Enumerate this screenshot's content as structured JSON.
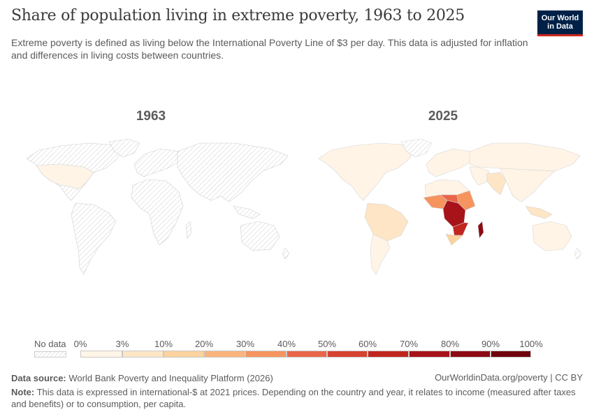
{
  "header": {
    "title": "Share of population living in extreme poverty, 1963 to 2025",
    "subtitle": "Extreme poverty is defined as living below the International Poverty Line of $3 per day. This data is adjusted for inflation and differences in living costs between countries.",
    "logo_line1": "Our World",
    "logo_line2": "in Data"
  },
  "maps": [
    {
      "year": "1963"
    },
    {
      "year": "2025"
    }
  ],
  "legend": {
    "no_data_label": "No data",
    "ticks": [
      "0%",
      "3%",
      "10%",
      "20%",
      "30%",
      "40%",
      "50%",
      "60%",
      "70%",
      "80%",
      "90%",
      "100%"
    ],
    "bins": [
      {
        "from": 0,
        "to": 3,
        "color": "#fff4e6"
      },
      {
        "from": 3,
        "to": 10,
        "color": "#fde5c6"
      },
      {
        "from": 10,
        "to": 20,
        "color": "#fcd29e"
      },
      {
        "from": 20,
        "to": 30,
        "color": "#fbb37c"
      },
      {
        "from": 30,
        "to": 40,
        "color": "#f5945f"
      },
      {
        "from": 40,
        "to": 50,
        "color": "#e9664a"
      },
      {
        "from": 50,
        "to": 60,
        "color": "#d7412f"
      },
      {
        "from": 60,
        "to": 70,
        "color": "#c0261e"
      },
      {
        "from": 70,
        "to": 80,
        "color": "#a8131a"
      },
      {
        "from": 80,
        "to": 90,
        "color": "#8c0a14"
      },
      {
        "from": 90,
        "to": 100,
        "color": "#6f040c"
      }
    ]
  },
  "footer": {
    "source_label": "Data source:",
    "source_text": "World Bank Poverty and Inequality Platform (2026)",
    "credit": "OurWorldinData.org/poverty | CC BY",
    "note_label": "Note:",
    "note_text": "This data is expressed in international-$ at 2021 prices. Depending on the country and year, it relates to income (measured after taxes and benefits) or to consumption, per capita."
  }
}
